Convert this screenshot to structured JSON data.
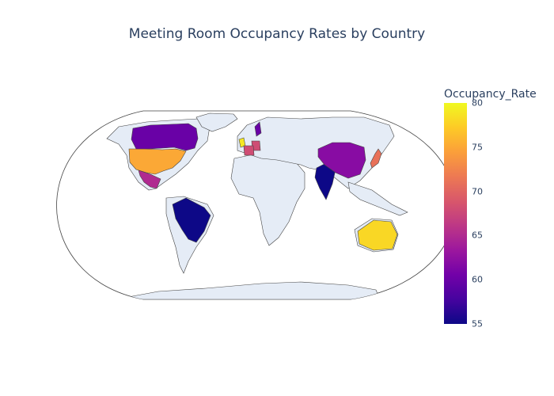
{
  "title": "Meeting Room Occupancy Rates by Country",
  "colorbar": {
    "title": "Occupancy_Rate",
    "min": 55,
    "max": 80,
    "ticks": [
      "80",
      "75",
      "70",
      "65",
      "60",
      "55"
    ],
    "colorscale": [
      "#0d0887",
      "#46039f",
      "#7201a8",
      "#9c179e",
      "#bd3786",
      "#d8576b",
      "#ed7953",
      "#fb9f3a",
      "#fdca26",
      "#f0f921"
    ]
  },
  "map": {
    "land_color": "#e5ecf6",
    "border_color": "#444444",
    "projection": "natural earth"
  },
  "chart_data": {
    "type": "choropleth",
    "title": "Meeting Room Occupancy Rates by Country",
    "colorbar_title": "Occupancy_Rate",
    "color_range": [
      55,
      80
    ],
    "countries": [
      {
        "name": "United States",
        "value": 75
      },
      {
        "name": "Canada",
        "value": 60
      },
      {
        "name": "Mexico",
        "value": 65
      },
      {
        "name": "Brazil",
        "value": 55
      },
      {
        "name": "India",
        "value": 55
      },
      {
        "name": "China",
        "value": 62
      },
      {
        "name": "Japan",
        "value": 71
      },
      {
        "name": "Australia",
        "value": 78
      },
      {
        "name": "United Kingdom",
        "value": 79
      },
      {
        "name": "Germany",
        "value": 68
      },
      {
        "name": "France",
        "value": 68
      },
      {
        "name": "Sweden",
        "value": 60
      }
    ]
  }
}
